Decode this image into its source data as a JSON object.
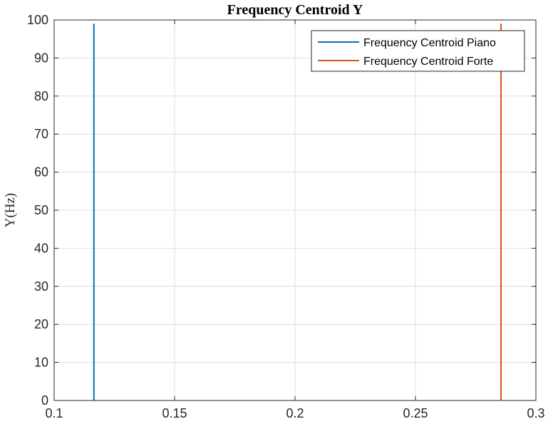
{
  "chart_data": {
    "type": "line",
    "title": "Frequency Centroid Y",
    "xlabel": "",
    "ylabel": "Y(Hz)",
    "xlim": [
      0.1,
      0.3
    ],
    "ylim": [
      0,
      100
    ],
    "xticks": [
      0.1,
      0.15,
      0.2,
      0.25,
      0.3
    ],
    "xtick_labels": [
      "0.1",
      "0.15",
      "0.2",
      "0.25",
      "0.3"
    ],
    "yticks": [
      0,
      10,
      20,
      30,
      40,
      50,
      60,
      70,
      80,
      90,
      100
    ],
    "ytick_labels": [
      "0",
      "10",
      "20",
      "30",
      "40",
      "50",
      "60",
      "70",
      "80",
      "90",
      "100"
    ],
    "grid": true,
    "legend_position": "top-right",
    "series": [
      {
        "name": "Frequency Centroid Piano",
        "color": "#0072bd",
        "x": [
          0.1165,
          0.1165
        ],
        "y": [
          0,
          99
        ]
      },
      {
        "name": "Frequency Centroid Forte",
        "color": "#d95319",
        "x": [
          0.2855,
          0.2855
        ],
        "y": [
          0,
          99
        ]
      }
    ]
  }
}
